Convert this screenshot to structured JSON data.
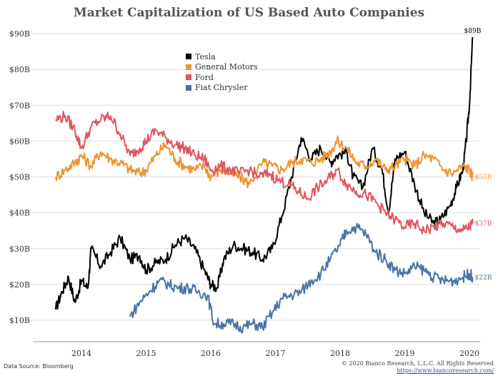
{
  "chart_data": {
    "type": "line",
    "title": "Market Capitalization of US Based Auto Companies",
    "xlabel": "",
    "ylabel": "",
    "x_ticks": [
      "2014",
      "2015",
      "2016",
      "2017",
      "2018",
      "2019",
      "2020"
    ],
    "y_ticks": [
      "$10B",
      "$20B",
      "$30B",
      "$40B",
      "$50B",
      "$60B",
      "$70B",
      "$80B",
      "$90B"
    ],
    "ylim": [
      5,
      93
    ],
    "xlim": [
      2013.5,
      2020.15
    ],
    "grid": "horizontal gridlines",
    "legend_position": "top-left",
    "series": [
      {
        "name": "Tesla",
        "color": "#000000",
        "end_label": "$89B",
        "points": [
          [
            2013.6,
            13
          ],
          [
            2013.7,
            18
          ],
          [
            2013.8,
            22
          ],
          [
            2013.9,
            15
          ],
          [
            2014.0,
            21
          ],
          [
            2014.1,
            19
          ],
          [
            2014.15,
            30
          ],
          [
            2014.3,
            25
          ],
          [
            2014.45,
            29
          ],
          [
            2014.6,
            33
          ],
          [
            2014.75,
            27
          ],
          [
            2014.9,
            28
          ],
          [
            2015.0,
            24
          ],
          [
            2015.15,
            26
          ],
          [
            2015.3,
            27
          ],
          [
            2015.45,
            31
          ],
          [
            2015.6,
            33
          ],
          [
            2015.75,
            30
          ],
          [
            2015.9,
            24
          ],
          [
            2016.0,
            20
          ],
          [
            2016.1,
            19
          ],
          [
            2016.2,
            27
          ],
          [
            2016.35,
            31
          ],
          [
            2016.5,
            30
          ],
          [
            2016.65,
            29
          ],
          [
            2016.8,
            27
          ],
          [
            2016.95,
            30
          ],
          [
            2017.1,
            39
          ],
          [
            2017.25,
            50
          ],
          [
            2017.4,
            61
          ],
          [
            2017.55,
            55
          ],
          [
            2017.7,
            58
          ],
          [
            2017.85,
            54
          ],
          [
            2017.95,
            56
          ],
          [
            2018.1,
            57
          ],
          [
            2018.2,
            50
          ],
          [
            2018.35,
            47
          ],
          [
            2018.5,
            58
          ],
          [
            2018.65,
            52
          ],
          [
            2018.75,
            40
          ],
          [
            2018.85,
            55
          ],
          [
            2019.0,
            57
          ],
          [
            2019.15,
            48
          ],
          [
            2019.3,
            40
          ],
          [
            2019.45,
            37
          ],
          [
            2019.55,
            38
          ],
          [
            2019.7,
            42
          ],
          [
            2019.8,
            47
          ],
          [
            2019.9,
            52
          ],
          [
            2019.95,
            60
          ],
          [
            2020.0,
            70
          ],
          [
            2020.05,
            89
          ]
        ]
      },
      {
        "name": "General Motors",
        "color": "#f0922e",
        "end_label": "$50B",
        "points": [
          [
            2013.6,
            50
          ],
          [
            2013.75,
            52
          ],
          [
            2013.9,
            54
          ],
          [
            2014.0,
            56
          ],
          [
            2014.15,
            53
          ],
          [
            2014.3,
            57
          ],
          [
            2014.45,
            55
          ],
          [
            2014.6,
            54
          ],
          [
            2014.75,
            52
          ],
          [
            2014.9,
            51
          ],
          [
            2015.0,
            52
          ],
          [
            2015.15,
            56
          ],
          [
            2015.3,
            59
          ],
          [
            2015.45,
            55
          ],
          [
            2015.6,
            53
          ],
          [
            2015.75,
            52
          ],
          [
            2015.9,
            53
          ],
          [
            2016.0,
            50
          ],
          [
            2016.15,
            52
          ],
          [
            2016.3,
            51
          ],
          [
            2016.45,
            50
          ],
          [
            2016.6,
            48
          ],
          [
            2016.8,
            54
          ],
          [
            2016.95,
            53
          ],
          [
            2017.1,
            52
          ],
          [
            2017.25,
            54
          ],
          [
            2017.4,
            55
          ],
          [
            2017.55,
            54
          ],
          [
            2017.7,
            55
          ],
          [
            2017.85,
            57
          ],
          [
            2017.95,
            60
          ],
          [
            2018.1,
            58
          ],
          [
            2018.25,
            54
          ],
          [
            2018.4,
            53
          ],
          [
            2018.55,
            55
          ],
          [
            2018.7,
            52
          ],
          [
            2018.85,
            53
          ],
          [
            2019.0,
            55
          ],
          [
            2019.15,
            53
          ],
          [
            2019.3,
            56
          ],
          [
            2019.45,
            55
          ],
          [
            2019.6,
            52
          ],
          [
            2019.75,
            51
          ],
          [
            2019.9,
            53
          ],
          [
            2020.0,
            52
          ],
          [
            2020.05,
            50
          ]
        ]
      },
      {
        "name": "Ford",
        "color": "#e0555e",
        "end_label": "$37B",
        "points": [
          [
            2013.6,
            66
          ],
          [
            2013.75,
            67
          ],
          [
            2013.9,
            63
          ],
          [
            2014.0,
            58
          ],
          [
            2014.15,
            64
          ],
          [
            2014.3,
            66
          ],
          [
            2014.45,
            67
          ],
          [
            2014.6,
            62
          ],
          [
            2014.75,
            56
          ],
          [
            2014.9,
            58
          ],
          [
            2015.0,
            60
          ],
          [
            2015.15,
            63
          ],
          [
            2015.3,
            61
          ],
          [
            2015.45,
            59
          ],
          [
            2015.6,
            58
          ],
          [
            2015.75,
            56
          ],
          [
            2015.9,
            55
          ],
          [
            2016.0,
            52
          ],
          [
            2016.15,
            53
          ],
          [
            2016.3,
            52
          ],
          [
            2016.45,
            51
          ],
          [
            2016.6,
            52
          ],
          [
            2016.75,
            50
          ],
          [
            2016.9,
            51
          ],
          [
            2017.05,
            49
          ],
          [
            2017.2,
            48
          ],
          [
            2017.35,
            46
          ],
          [
            2017.5,
            44
          ],
          [
            2017.65,
            47
          ],
          [
            2017.8,
            49
          ],
          [
            2017.95,
            52
          ],
          [
            2018.1,
            48
          ],
          [
            2018.25,
            46
          ],
          [
            2018.4,
            45
          ],
          [
            2018.55,
            43
          ],
          [
            2018.7,
            40
          ],
          [
            2018.85,
            38
          ],
          [
            2019.0,
            36
          ],
          [
            2019.15,
            37
          ],
          [
            2019.3,
            35
          ],
          [
            2019.45,
            36
          ],
          [
            2019.6,
            37
          ],
          [
            2019.75,
            36
          ],
          [
            2019.9,
            35
          ],
          [
            2020.0,
            36
          ],
          [
            2020.05,
            37
          ]
        ]
      },
      {
        "name": "Fiat Chrysler",
        "color": "#4a72a6",
        "end_label": "$22B",
        "points": [
          [
            2014.75,
            11
          ],
          [
            2014.9,
            15
          ],
          [
            2015.05,
            18
          ],
          [
            2015.2,
            21
          ],
          [
            2015.35,
            20
          ],
          [
            2015.5,
            19
          ],
          [
            2015.65,
            19
          ],
          [
            2015.8,
            18
          ],
          [
            2015.95,
            17
          ],
          [
            2016.05,
            9
          ],
          [
            2016.2,
            9
          ],
          [
            2016.35,
            9
          ],
          [
            2016.5,
            8
          ],
          [
            2016.65,
            9
          ],
          [
            2016.8,
            8
          ],
          [
            2016.95,
            12
          ],
          [
            2017.1,
            16
          ],
          [
            2017.25,
            17
          ],
          [
            2017.4,
            18
          ],
          [
            2017.55,
            21
          ],
          [
            2017.7,
            23
          ],
          [
            2017.85,
            27
          ],
          [
            2018.0,
            31
          ],
          [
            2018.1,
            35
          ],
          [
            2018.25,
            36
          ],
          [
            2018.4,
            34
          ],
          [
            2018.55,
            29
          ],
          [
            2018.7,
            27
          ],
          [
            2018.85,
            24
          ],
          [
            2019.0,
            23
          ],
          [
            2019.15,
            25
          ],
          [
            2019.3,
            24
          ],
          [
            2019.45,
            22
          ],
          [
            2019.6,
            21
          ],
          [
            2019.75,
            21
          ],
          [
            2019.9,
            22
          ],
          [
            2020.0,
            23
          ],
          [
            2020.05,
            22
          ]
        ]
      }
    ]
  },
  "source_text": "Data Source: Bloomberg",
  "copyright_text": "© 2020 Bianco Research, L.L.C. All Rights Reserved",
  "copyright_url": "https://www.biancoresearch.com/"
}
